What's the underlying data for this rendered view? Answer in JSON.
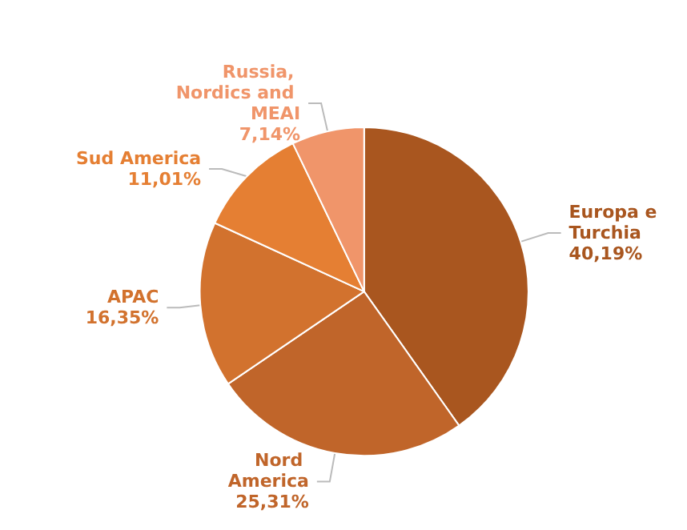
{
  "chart_data": {
    "type": "pie",
    "categories": [
      "Europa e Turchia",
      "Nord America",
      "APAC",
      "Sud America",
      "Russia, Nordics and MEAI"
    ],
    "values": [
      40.19,
      25.31,
      16.35,
      11.01,
      7.14
    ],
    "value_labels": [
      "40,19%",
      "25,31%",
      "16,35%",
      "11,01%",
      "7,14%"
    ],
    "colors": [
      "#a9561f",
      "#c0652a",
      "#d2722e",
      "#e57f33",
      "#f0956a"
    ]
  }
}
